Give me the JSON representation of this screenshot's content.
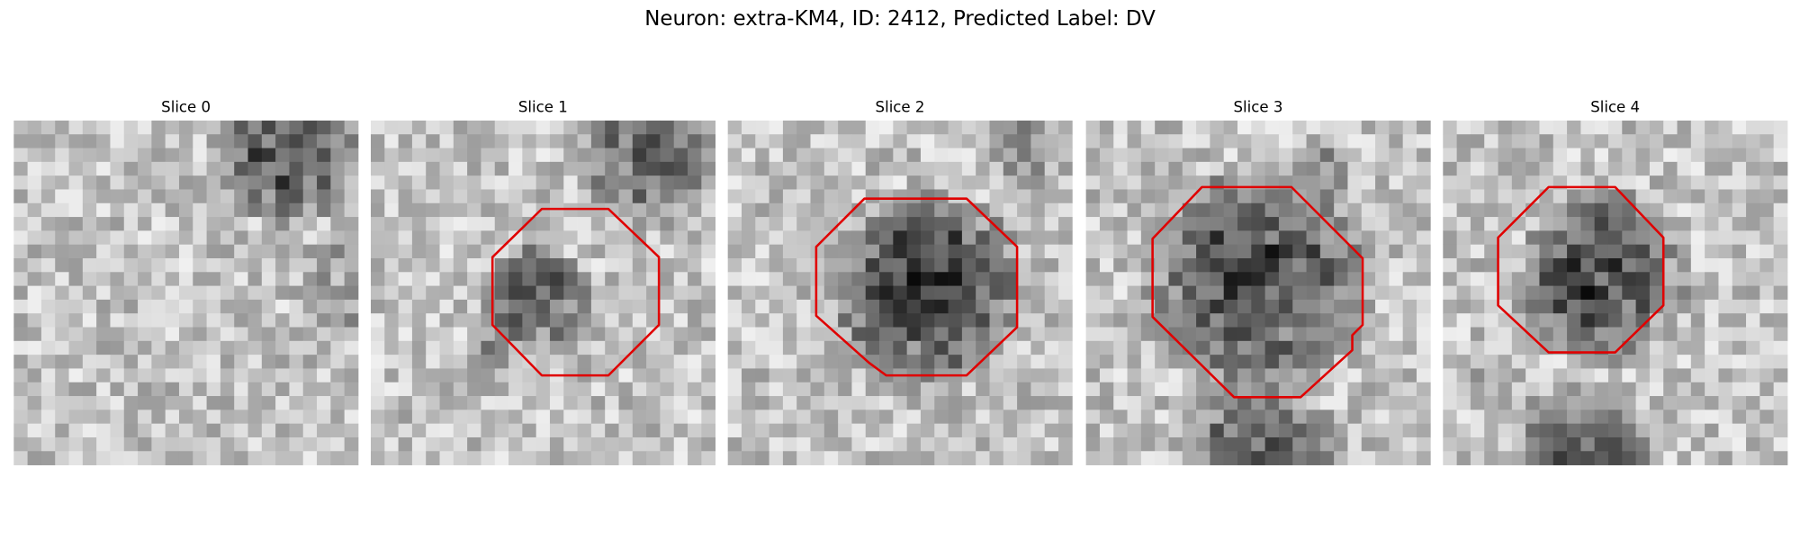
{
  "figure": {
    "title": "Neuron: extra-KM4, ID: 2412, Predicted Label: DV",
    "panels": [
      {
        "title": "Slice 0"
      },
      {
        "title": "Slice 1"
      },
      {
        "title": "Slice 2"
      },
      {
        "title": "Slice 3"
      },
      {
        "title": "Slice 4"
      }
    ]
  }
}
